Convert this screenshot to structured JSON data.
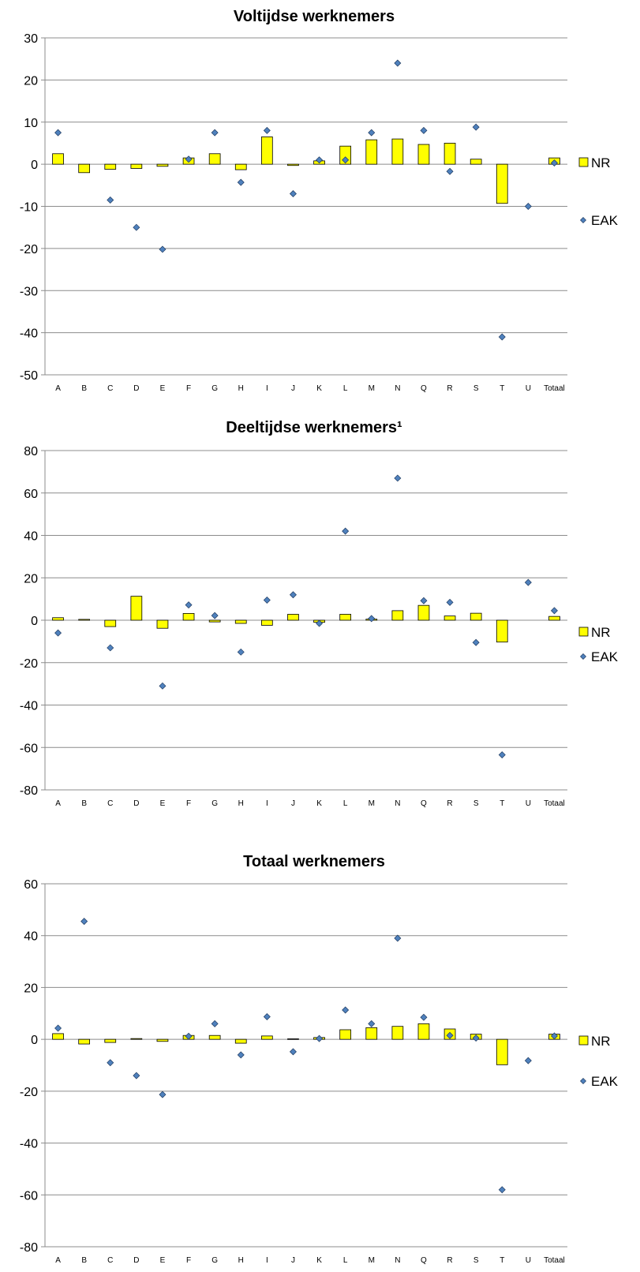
{
  "chart_data": [
    {
      "type": "bar",
      "title": "Voltijdse werknemers",
      "xlabel": "",
      "ylabel": "",
      "ylim": [
        -50,
        30
      ],
      "yticks": [
        30,
        20,
        10,
        0,
        -10,
        -20,
        -30,
        -40,
        -50
      ],
      "categories": [
        "A",
        "B",
        "C",
        "D",
        "E",
        "F",
        "G",
        "H",
        "I",
        "J",
        "K",
        "L",
        "M",
        "N",
        "Q",
        "R",
        "S",
        "T",
        "U",
        "Totaal"
      ],
      "series": [
        {
          "name": "NR",
          "kind": "bar",
          "color": "#ffff00",
          "values": [
            2.5,
            -2,
            -1.2,
            -1,
            -0.5,
            1.5,
            2.5,
            -1.3,
            6.5,
            -0.3,
            0.8,
            4.3,
            5.8,
            6,
            4.7,
            5,
            1.2,
            -9.3,
            null,
            1.5
          ]
        },
        {
          "name": "EAK",
          "kind": "marker",
          "color": "#4f81bd",
          "values": [
            7.5,
            null,
            -8.5,
            -15,
            -20.2,
            1.2,
            7.5,
            -4.3,
            8,
            -7,
            1,
            1,
            7.5,
            24,
            8,
            -1.7,
            8.8,
            -41,
            -10,
            0.3
          ]
        }
      ],
      "legend": "right",
      "grid": true
    },
    {
      "type": "bar",
      "title": "Deeltijdse werknemers¹",
      "xlabel": "",
      "ylabel": "",
      "ylim": [
        -80,
        80
      ],
      "yticks": [
        80,
        60,
        40,
        20,
        0,
        -20,
        -40,
        -60,
        -80
      ],
      "categories": [
        "A",
        "B",
        "C",
        "D",
        "E",
        "F",
        "G",
        "H",
        "I",
        "J",
        "K",
        "L",
        "M",
        "N",
        "Q",
        "R",
        "S",
        "T",
        "U",
        "Totaal"
      ],
      "series": [
        {
          "name": "NR",
          "kind": "bar",
          "color": "#ffff00",
          "values": [
            1.2,
            0.4,
            -3,
            11.3,
            -3.8,
            3.2,
            -0.8,
            -1.5,
            -2.4,
            2.8,
            -1,
            2.8,
            0.5,
            4.5,
            7,
            2,
            3.3,
            -10.3,
            null,
            1.8
          ]
        },
        {
          "name": "EAK",
          "kind": "marker",
          "color": "#4f81bd",
          "values": [
            -6,
            null,
            -13,
            null,
            -31,
            7.2,
            2.2,
            -15,
            9.5,
            12,
            -1.5,
            42,
            0.8,
            67,
            9.2,
            8.4,
            -10.5,
            -63.5,
            17.8,
            4.5
          ]
        }
      ],
      "legend": "right",
      "grid": true
    },
    {
      "type": "bar",
      "title": "Totaal werknemers",
      "xlabel": "",
      "ylabel": "",
      "ylim": [
        -80,
        60
      ],
      "yticks": [
        60,
        40,
        20,
        0,
        -20,
        -40,
        -60,
        -80
      ],
      "categories": [
        "A",
        "B",
        "C",
        "D",
        "E",
        "F",
        "G",
        "H",
        "I",
        "J",
        "K",
        "L",
        "M",
        "N",
        "Q",
        "R",
        "S",
        "T",
        "U",
        "Totaal"
      ],
      "series": [
        {
          "name": "NR",
          "kind": "bar",
          "color": "#ffff00",
          "values": [
            2.2,
            -1.8,
            -1.2,
            0.3,
            -0.8,
            1.5,
            1.5,
            -1.5,
            1.3,
            0.2,
            0.7,
            3.7,
            4.5,
            5,
            6,
            4,
            2,
            -9.8,
            null,
            2
          ]
        },
        {
          "name": "EAK",
          "kind": "marker",
          "color": "#4f81bd",
          "values": [
            4.3,
            45.5,
            -9,
            -14,
            -21.3,
            1.2,
            6,
            -6,
            8.7,
            -4.8,
            0.3,
            11.3,
            6,
            39,
            8.5,
            1.5,
            0.5,
            -58,
            -8.2,
            1.3
          ]
        }
      ],
      "legend": "right",
      "grid": true
    }
  ]
}
